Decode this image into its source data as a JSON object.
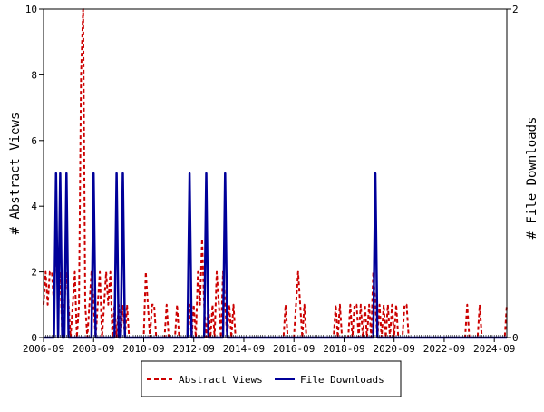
{
  "chart_data": {
    "type": "line",
    "ylabel_left": "# Abstract Views",
    "ylabel_right": "# File Downloads",
    "x_ticks": [
      "2006-09",
      "2008-09",
      "2010-09",
      "2012-09",
      "2014-09",
      "2016-09",
      "2018-09",
      "2020-09",
      "2022-09",
      "2024-09"
    ],
    "x_range": [
      "2006-09",
      "2025-03"
    ],
    "y_left_range": [
      0,
      10
    ],
    "y_left_ticks": [
      "0",
      "2",
      "4",
      "6",
      "8",
      "10"
    ],
    "y_right_range": [
      0,
      2
    ],
    "y_right_ticks": [
      "0",
      "2"
    ],
    "legend_position": "bottom-center",
    "grid": false,
    "series": [
      {
        "name": "Abstract Views",
        "axis": "left",
        "color": "#cc0000",
        "style": "dashed",
        "points": [
          [
            "2006-09",
            1
          ],
          [
            "2006-10",
            2
          ],
          [
            "2006-11",
            1
          ],
          [
            "2006-12",
            2
          ],
          [
            "2007-01",
            2
          ],
          [
            "2007-02",
            1
          ],
          [
            "2007-03",
            3
          ],
          [
            "2007-04",
            1
          ],
          [
            "2007-05",
            2
          ],
          [
            "2007-06",
            0
          ],
          [
            "2007-07",
            1
          ],
          [
            "2007-08",
            2
          ],
          [
            "2007-09",
            1
          ],
          [
            "2007-10",
            0
          ],
          [
            "2007-11",
            1
          ],
          [
            "2007-12",
            2
          ],
          [
            "2008-01",
            0
          ],
          [
            "2008-02",
            1
          ],
          [
            "2008-03",
            8
          ],
          [
            "2008-04",
            10
          ],
          [
            "2008-05",
            1
          ],
          [
            "2008-06",
            0
          ],
          [
            "2008-07",
            1
          ],
          [
            "2008-08",
            2
          ],
          [
            "2008-09",
            1
          ],
          [
            "2008-10",
            0
          ],
          [
            "2008-11",
            1
          ],
          [
            "2008-12",
            2
          ],
          [
            "2009-01",
            0
          ],
          [
            "2009-02",
            1
          ],
          [
            "2009-03",
            2
          ],
          [
            "2009-04",
            1
          ],
          [
            "2009-05",
            2
          ],
          [
            "2009-06",
            0
          ],
          [
            "2009-07",
            1
          ],
          [
            "2009-08",
            0
          ],
          [
            "2009-09",
            1
          ],
          [
            "2009-10",
            0
          ],
          [
            "2009-11",
            1
          ],
          [
            "2009-12",
            0
          ],
          [
            "2010-01",
            1
          ],
          [
            "2010-02",
            0
          ],
          [
            "2010-09",
            0
          ],
          [
            "2010-10",
            2
          ],
          [
            "2010-11",
            1
          ],
          [
            "2010-12",
            0
          ],
          [
            "2011-01",
            1
          ],
          [
            "2011-02",
            1
          ],
          [
            "2011-03",
            0
          ],
          [
            "2011-07",
            0
          ],
          [
            "2011-08",
            1
          ],
          [
            "2011-09",
            0
          ],
          [
            "2011-12",
            0
          ],
          [
            "2012-01",
            1
          ],
          [
            "2012-02",
            0
          ],
          [
            "2012-06",
            0
          ],
          [
            "2012-07",
            1
          ],
          [
            "2012-08",
            0
          ],
          [
            "2012-09",
            1
          ],
          [
            "2012-10",
            0
          ],
          [
            "2012-11",
            2
          ],
          [
            "2012-12",
            1
          ],
          [
            "2013-01",
            3
          ],
          [
            "2013-02",
            1
          ],
          [
            "2013-03",
            0
          ],
          [
            "2013-04",
            1
          ],
          [
            "2013-05",
            0
          ],
          [
            "2013-06",
            1
          ],
          [
            "2013-07",
            0
          ],
          [
            "2013-08",
            2
          ],
          [
            "2013-09",
            1
          ],
          [
            "2013-10",
            0
          ],
          [
            "2013-11",
            2
          ],
          [
            "2013-12",
            1
          ],
          [
            "2014-01",
            0
          ],
          [
            "2014-02",
            1
          ],
          [
            "2014-03",
            0
          ],
          [
            "2014-04",
            1
          ],
          [
            "2014-05",
            0
          ],
          [
            "2016-04",
            0
          ],
          [
            "2016-05",
            1
          ],
          [
            "2016-06",
            0
          ],
          [
            "2016-09",
            0
          ],
          [
            "2016-10",
            1
          ],
          [
            "2016-11",
            2
          ],
          [
            "2016-12",
            1
          ],
          [
            "2017-01",
            0
          ],
          [
            "2017-02",
            1
          ],
          [
            "2017-03",
            0
          ],
          [
            "2018-04",
            0
          ],
          [
            "2018-05",
            1
          ],
          [
            "2018-06",
            0
          ],
          [
            "2018-07",
            1
          ],
          [
            "2018-08",
            0
          ],
          [
            "2018-11",
            0
          ],
          [
            "2018-12",
            1
          ],
          [
            "2019-01",
            0
          ],
          [
            "2019-02",
            1
          ],
          [
            "2019-03",
            1
          ],
          [
            "2019-04",
            0
          ],
          [
            "2019-05",
            1
          ],
          [
            "2019-06",
            0
          ],
          [
            "2019-07",
            1
          ],
          [
            "2019-08",
            0
          ],
          [
            "2019-09",
            1
          ],
          [
            "2019-10",
            0
          ],
          [
            "2019-11",
            2
          ],
          [
            "2019-12",
            1
          ],
          [
            "2020-01",
            0
          ],
          [
            "2020-02",
            1
          ],
          [
            "2020-03",
            0
          ],
          [
            "2020-04",
            1
          ],
          [
            "2020-05",
            0
          ],
          [
            "2020-06",
            1
          ],
          [
            "2020-07",
            0
          ],
          [
            "2020-08",
            1
          ],
          [
            "2020-09",
            0
          ],
          [
            "2020-10",
            1
          ],
          [
            "2020-11",
            0
          ],
          [
            "2021-01",
            0
          ],
          [
            "2021-02",
            1
          ],
          [
            "2021-03",
            1
          ],
          [
            "2021-04",
            0
          ],
          [
            "2023-07",
            0
          ],
          [
            "2023-08",
            1
          ],
          [
            "2023-09",
            0
          ],
          [
            "2024-01",
            0
          ],
          [
            "2024-02",
            1
          ],
          [
            "2024-03",
            0
          ],
          [
            "2025-02",
            0
          ],
          [
            "2025-03",
            1
          ]
        ]
      },
      {
        "name": "File Downloads",
        "axis": "right",
        "color": "#000099",
        "style": "solid",
        "points": [
          [
            "2006-09",
            0
          ],
          [
            "2007-02",
            0
          ],
          [
            "2007-03",
            1
          ],
          [
            "2007-04",
            0
          ],
          [
            "2007-05",
            1
          ],
          [
            "2007-06",
            0
          ],
          [
            "2007-07",
            0
          ],
          [
            "2007-08",
            1
          ],
          [
            "2007-09",
            0
          ],
          [
            "2008-08",
            0
          ],
          [
            "2008-09",
            1
          ],
          [
            "2008-10",
            0
          ],
          [
            "2009-07",
            0
          ],
          [
            "2009-08",
            1
          ],
          [
            "2009-09",
            0
          ],
          [
            "2009-10",
            0
          ],
          [
            "2009-11",
            1
          ],
          [
            "2009-12",
            0
          ],
          [
            "2012-06",
            0
          ],
          [
            "2012-07",
            1
          ],
          [
            "2012-08",
            0
          ],
          [
            "2013-02",
            0
          ],
          [
            "2013-03",
            1
          ],
          [
            "2013-04",
            0
          ],
          [
            "2013-11",
            0
          ],
          [
            "2013-12",
            1
          ],
          [
            "2014-01",
            0
          ],
          [
            "2019-11",
            0
          ],
          [
            "2019-12",
            1
          ],
          [
            "2020-01",
            0
          ],
          [
            "2025-03",
            0
          ]
        ]
      }
    ]
  }
}
